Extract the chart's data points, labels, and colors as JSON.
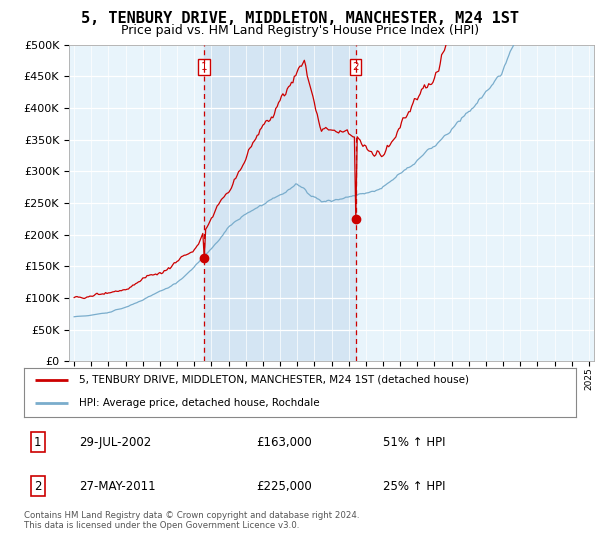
{
  "title": "5, TENBURY DRIVE, MIDDLETON, MANCHESTER, M24 1ST",
  "subtitle": "Price paid vs. HM Land Registry's House Price Index (HPI)",
  "ylabel_ticks": [
    "£0",
    "£50K",
    "£100K",
    "£150K",
    "£200K",
    "£250K",
    "£300K",
    "£350K",
    "£400K",
    "£450K",
    "£500K"
  ],
  "ytick_values": [
    0,
    50000,
    100000,
    150000,
    200000,
    250000,
    300000,
    350000,
    400000,
    450000,
    500000
  ],
  "xlim_start": 1995,
  "xlim_end": 2025,
  "ylim": [
    0,
    500000
  ],
  "purchase1": {
    "date_num": 2002.57,
    "price": 163000,
    "label": "1"
  },
  "purchase2": {
    "date_num": 2011.4,
    "price": 225000,
    "label": "2"
  },
  "legend_line1": "5, TENBURY DRIVE, MIDDLETON, MANCHESTER, M24 1ST (detached house)",
  "legend_line2": "HPI: Average price, detached house, Rochdale",
  "table_row1": [
    "1",
    "29-JUL-2002",
    "£163,000",
    "51% ↑ HPI"
  ],
  "table_row2": [
    "2",
    "27-MAY-2011",
    "£225,000",
    "25% ↑ HPI"
  ],
  "footer": "Contains HM Land Registry data © Crown copyright and database right 2024.\nThis data is licensed under the Open Government Licence v3.0.",
  "line_color_red": "#cc0000",
  "line_color_blue": "#7aadcc",
  "shade_color": "#cce0f0",
  "background_color": "#e8f4fb",
  "plot_bg": "#ffffff",
  "vline_color": "#cc0000",
  "grid_color": "#ffffff",
  "title_fontsize": 11,
  "subtitle_fontsize": 9,
  "tick_fontsize": 8
}
